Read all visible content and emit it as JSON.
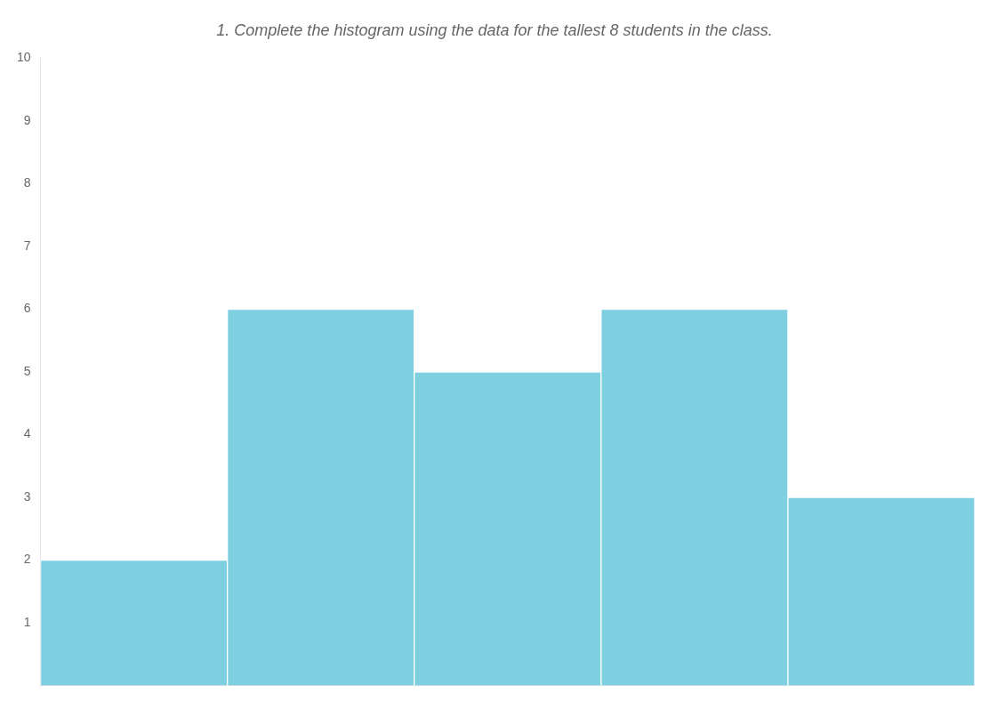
{
  "chart_data": {
    "type": "bar",
    "title": "1. Complete the histogram using the data for the tallest 8 students in the class.",
    "categories": [
      null,
      null,
      null,
      null,
      null
    ],
    "values": [
      2,
      6,
      5,
      6,
      3
    ],
    "color": "#7ecfe0",
    "ylim": [
      0,
      10
    ],
    "yticks": [
      1,
      2,
      3,
      4,
      5,
      6,
      7,
      8,
      9,
      10
    ],
    "grid": false,
    "tick_labels": "y"
  }
}
